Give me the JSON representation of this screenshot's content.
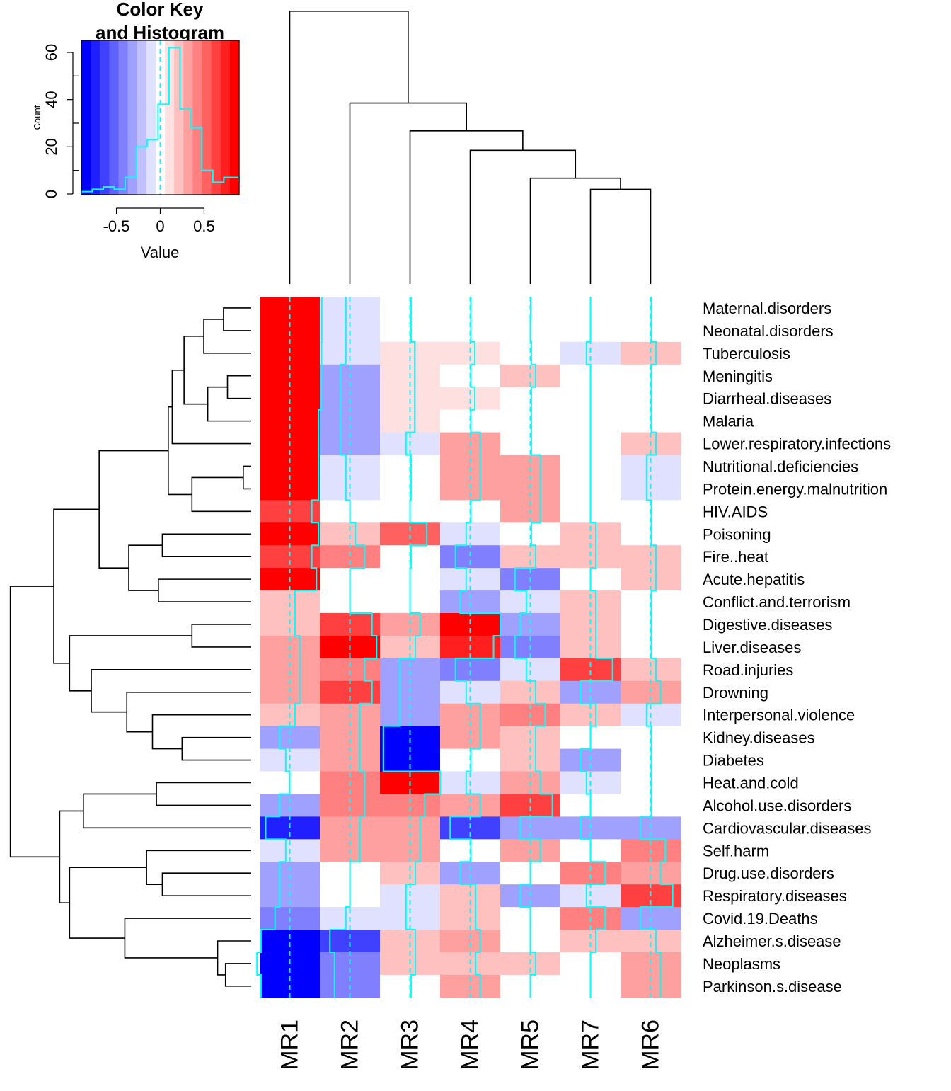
{
  "chart_data": {
    "type": "heatmap",
    "color_key": {
      "title_line1": "Color Key",
      "title_line2": "and Histogram",
      "xlabel": "Value",
      "ylabel": "Count",
      "xticks": [
        -0.5,
        0,
        0.5
      ],
      "xtick_labels": [
        "-0.5",
        "0",
        "0.5"
      ],
      "yticks": [
        0,
        20,
        40,
        60
      ],
      "ytick_labels": [
        "0",
        "20",
        "40",
        "60"
      ],
      "value_range": [
        -0.9,
        0.9
      ],
      "count_range": [
        0,
        60
      ],
      "colors": [
        "#0000FF",
        "#1F1FFF",
        "#4040FF",
        "#6060FF",
        "#8080FF",
        "#A0A0FF",
        "#C0C0FF",
        "#E0E0FF",
        "#FFFFFF",
        "#FFE0E0",
        "#FFC0C0",
        "#FFA0A0",
        "#FF8080",
        "#FF6060",
        "#FF4040",
        "#FF1F1F",
        "#FF0000"
      ],
      "histogram_bins": [
        -0.9,
        -0.775,
        -0.65,
        -0.525,
        -0.4,
        -0.275,
        -0.15,
        -0.025,
        0.1,
        0.225,
        0.35,
        0.475,
        0.6,
        0.725,
        0.9
      ],
      "histogram_counts": [
        1,
        2,
        3,
        2,
        7,
        20,
        23,
        38,
        62,
        36,
        28,
        10,
        5,
        7,
        5
      ]
    },
    "columns": [
      "MR1",
      "MR2",
      "MR3",
      "MR4",
      "MR5",
      "MR7",
      "MR6"
    ],
    "rows": [
      "Maternal.disorders",
      "Neonatal.disorders",
      "Tuberculosis",
      "Meningitis",
      "Diarrheal.diseases",
      "Malaria",
      "Lower.respiratory.infections",
      "Nutritional.deficiencies",
      "Protein.energy.malnutrition",
      "HIV.AIDS",
      "Poisoning",
      "Fire..heat",
      "Acute.hepatitis",
      "Conflict.and.terrorism",
      "Digestive.diseases",
      "Liver.diseases",
      "Road.injuries",
      "Drowning",
      "Interpersonal.violence",
      "Kidney.diseases",
      "Diabetes",
      "Heat.and.cold",
      "Alcohol.use.disorders",
      "Cardiovascular.diseases",
      "Self.harm",
      "Drug.use.disorders",
      "Respiratory.diseases",
      "Covid.19.Deaths",
      "Alzheimer.s.disease",
      "Neoplasms",
      "Parkinson.s.disease"
    ],
    "values": [
      [
        0.96,
        -0.12,
        0.03,
        0.02,
        0.01,
        0.0,
        0.02
      ],
      [
        0.96,
        -0.12,
        0.03,
        0.02,
        0.0,
        0.0,
        0.02
      ],
      [
        0.95,
        -0.12,
        0.14,
        0.14,
        0.03,
        -0.12,
        0.16
      ],
      [
        0.94,
        -0.28,
        0.14,
        0.02,
        0.16,
        0.0,
        0.02
      ],
      [
        0.94,
        -0.28,
        0.14,
        0.14,
        0.03,
        0.0,
        0.02
      ],
      [
        0.86,
        -0.28,
        0.14,
        0.02,
        0.03,
        0.0,
        0.02
      ],
      [
        0.86,
        -0.28,
        -0.12,
        0.3,
        0.03,
        0.0,
        0.16
      ],
      [
        0.86,
        -0.12,
        0.03,
        0.3,
        0.3,
        0.0,
        -0.12
      ],
      [
        0.86,
        -0.12,
        0.03,
        0.3,
        0.3,
        0.0,
        -0.12
      ],
      [
        0.66,
        0.0,
        0.0,
        0.02,
        0.3,
        0.0,
        0.02
      ],
      [
        0.86,
        0.16,
        0.5,
        -0.12,
        0.03,
        0.16,
        0.02
      ],
      [
        0.66,
        0.44,
        0.03,
        -0.44,
        0.16,
        0.16,
        0.16
      ],
      [
        0.8,
        0.0,
        0.0,
        -0.12,
        -0.46,
        0.0,
        0.16
      ],
      [
        0.16,
        0.0,
        0.0,
        -0.3,
        -0.12,
        0.16,
        0.02
      ],
      [
        0.16,
        0.66,
        0.3,
        0.9,
        -0.3,
        0.16,
        0.02
      ],
      [
        0.3,
        0.8,
        0.16,
        0.7,
        -0.46,
        0.16,
        0.02
      ],
      [
        0.3,
        0.44,
        -0.3,
        -0.44,
        -0.12,
        0.66,
        0.16
      ],
      [
        0.3,
        0.66,
        -0.3,
        -0.12,
        0.16,
        -0.3,
        0.3
      ],
      [
        0.16,
        0.3,
        -0.3,
        0.3,
        0.44,
        0.16,
        -0.12
      ],
      [
        -0.3,
        0.3,
        -0.8,
        0.3,
        0.16,
        0.0,
        0.02
      ],
      [
        -0.12,
        0.3,
        -0.8,
        0.02,
        0.16,
        -0.3,
        0.02
      ],
      [
        0.0,
        0.44,
        0.9,
        -0.12,
        0.3,
        -0.12,
        0.02
      ],
      [
        -0.3,
        0.44,
        0.44,
        0.3,
        0.66,
        0.0,
        0.02
      ],
      [
        -0.72,
        0.3,
        0.3,
        -0.6,
        -0.3,
        -0.3,
        -0.3
      ],
      [
        -0.12,
        0.3,
        0.3,
        0.02,
        0.3,
        0.0,
        0.44
      ],
      [
        -0.3,
        0.0,
        0.16,
        -0.3,
        0.0,
        0.44,
        0.3
      ],
      [
        -0.3,
        0.0,
        -0.12,
        0.16,
        -0.3,
        -0.12,
        0.66
      ],
      [
        -0.44,
        -0.12,
        -0.12,
        0.16,
        0.0,
        0.44,
        -0.3
      ],
      [
        -0.86,
        -0.6,
        0.16,
        0.3,
        0.0,
        0.16,
        0.16
      ],
      [
        -0.98,
        -0.46,
        0.16,
        0.16,
        0.16,
        0.0,
        0.3
      ],
      [
        -0.86,
        -0.46,
        0.03,
        0.3,
        0.0,
        0.0,
        0.3
      ]
    ],
    "trace_color": "#00FFFF",
    "row_dendrogram": [
      [
        0,
        1,
        0.14
      ],
      [
        31,
        2,
        0.24
      ],
      [
        3,
        4,
        0.12
      ],
      [
        33,
        5,
        0.22
      ],
      [
        32,
        34,
        0.34
      ],
      [
        35,
        6,
        0.4
      ],
      [
        7,
        8,
        0.04
      ],
      [
        37,
        9,
        0.3
      ],
      [
        36,
        38,
        0.42
      ],
      [
        10,
        11,
        0.45
      ],
      [
        12,
        13,
        0.47
      ],
      [
        40,
        41,
        0.62
      ],
      [
        39,
        42,
        0.77
      ],
      [
        14,
        15,
        0.3
      ],
      [
        19,
        20,
        0.35
      ],
      [
        18,
        45,
        0.5
      ],
      [
        17,
        46,
        0.63
      ],
      [
        16,
        47,
        0.81
      ],
      [
        44,
        48,
        0.92
      ],
      [
        21,
        22,
        0.48
      ],
      [
        23,
        50,
        0.85
      ],
      [
        25,
        26,
        0.45
      ],
      [
        24,
        52,
        0.53
      ],
      [
        29,
        30,
        0.13
      ],
      [
        28,
        54,
        0.17
      ],
      [
        27,
        55,
        0.64
      ],
      [
        53,
        56,
        0.92
      ],
      [
        51,
        57,
        0.97
      ],
      [
        43,
        49,
        1.0
      ],
      [
        58,
        59,
        1.22
      ]
    ],
    "col_dendrogram": [
      [
        5,
        6,
        0.34
      ],
      [
        4,
        7,
        0.38
      ],
      [
        3,
        8,
        0.48
      ],
      [
        2,
        9,
        0.55
      ],
      [
        1,
        10,
        0.65
      ],
      [
        0,
        11,
        0.98
      ]
    ]
  }
}
